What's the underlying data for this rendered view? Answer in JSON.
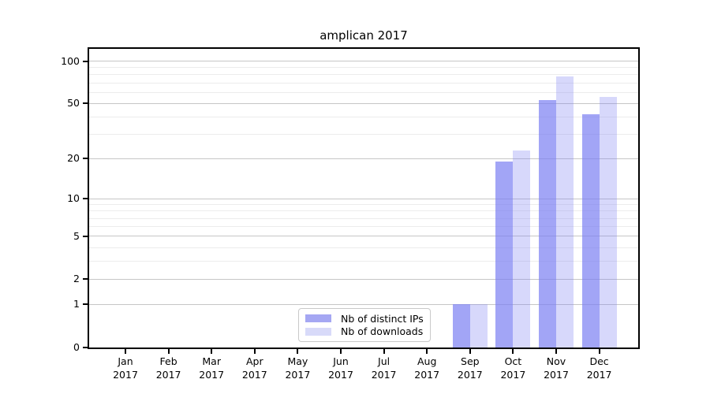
{
  "chart_data": {
    "type": "bar",
    "title": "amplican 2017",
    "categories": [
      "Jan",
      "Feb",
      "Mar",
      "Apr",
      "May",
      "Jun",
      "Jul",
      "Aug",
      "Sep",
      "Oct",
      "Nov",
      "Dec"
    ],
    "category_year": "2017",
    "series": [
      {
        "key": "ips",
        "name": "Nb of distinct IPs",
        "color": "rgba(123,127,242,0.70)",
        "swatch_hex": "#a5a7f3",
        "values": [
          0,
          0,
          0,
          0,
          0,
          0,
          0,
          0,
          1,
          19,
          53,
          42
        ]
      },
      {
        "key": "downloads",
        "name": "Nb of downloads",
        "color": "rgba(123,127,242,0.30)",
        "swatch_hex": "#d8daf9",
        "values": [
          0,
          0,
          0,
          0,
          0,
          0,
          0,
          0,
          1,
          23,
          78,
          56
        ]
      }
    ],
    "xlabel": "",
    "ylabel": "",
    "y_scale": "log10(1+y)",
    "y_ticks": [
      0,
      1,
      2,
      5,
      10,
      20,
      50,
      100
    ],
    "y_minor_ticks": [
      3,
      4,
      6,
      7,
      8,
      9,
      30,
      40,
      60,
      70,
      80,
      90
    ],
    "ylim": [
      0,
      124
    ],
    "grid": "horizontal",
    "legend_position": "lower-center",
    "colors": {
      "axis": "#000000",
      "grid_major": "#c6c6c6",
      "grid_minor": "#ececec",
      "legend_border": "#c9c9c9",
      "background": "#ffffff",
      "text": "#000000"
    }
  }
}
